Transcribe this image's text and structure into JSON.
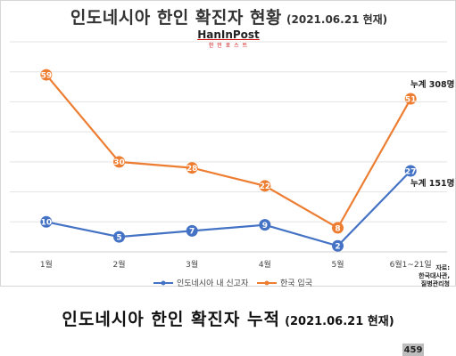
{
  "chart1": {
    "title": "인도네시아 한인 확진자 현황",
    "subtitle": "(2021.06.21 현재)",
    "logo_name": "HanInPost",
    "logo_tag": "한 인 포 스 트",
    "source_line1": "자료:",
    "source_line2": "한국대사관,",
    "source_line3": "질병관리청",
    "annotation_top": "누계 308명",
    "annotation_bottom": "누계 151명"
  },
  "chart_data": {
    "type": "line",
    "categories": [
      "1월",
      "2월",
      "3월",
      "4월",
      "5월",
      "6월1~21일"
    ],
    "series": [
      {
        "name": "인도네시아 내 신고자",
        "color": "#4472C4",
        "values": [
          10,
          5,
          7,
          9,
          2,
          27
        ]
      },
      {
        "name": "한국 입국",
        "color": "#ED7D31",
        "values": [
          59,
          30,
          28,
          22,
          8,
          51
        ]
      }
    ],
    "ylim": [
      0,
      70
    ],
    "grid": true,
    "legend": "bottom"
  },
  "chart2": {
    "title": "인도네시아 한인 확진자 누적",
    "subtitle": "(2021.06.21 현재)",
    "bar_value": "459"
  }
}
